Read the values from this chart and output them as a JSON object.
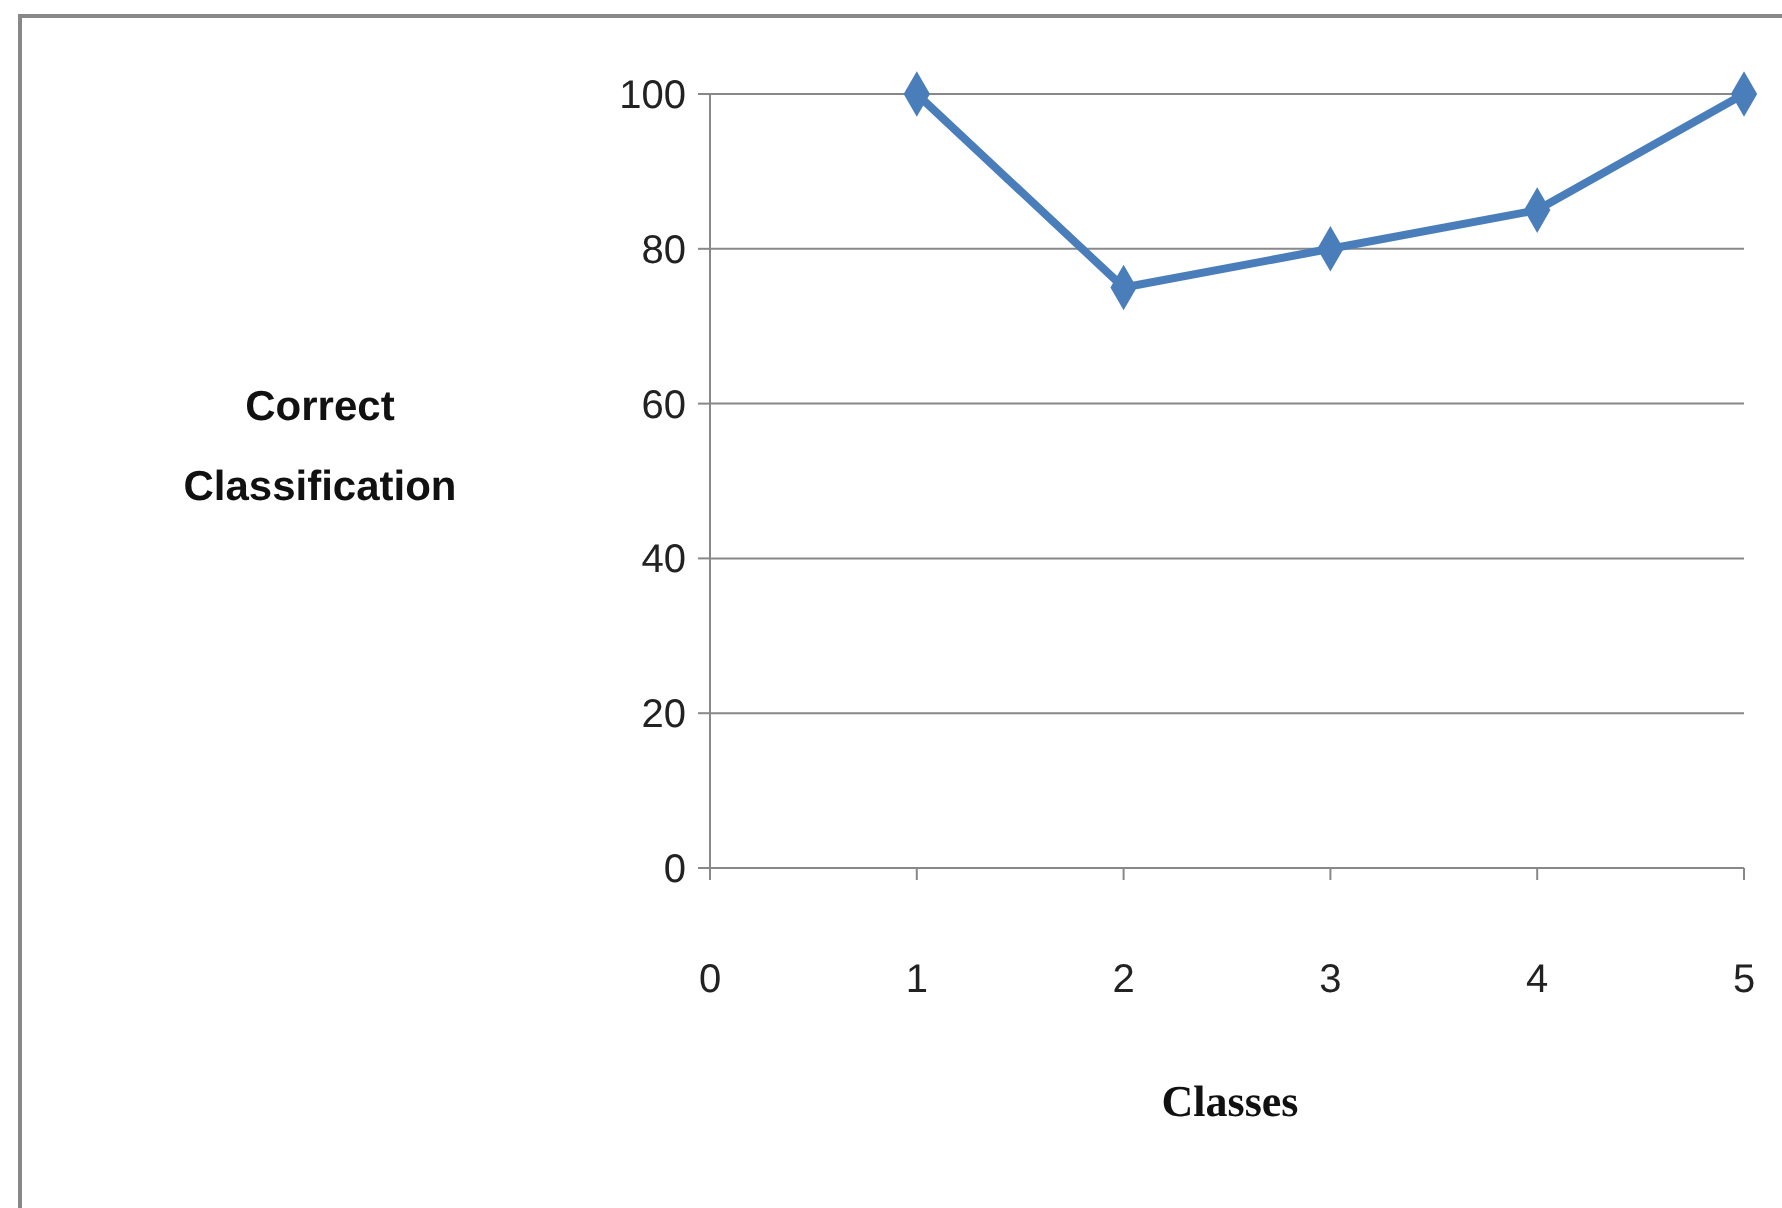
{
  "chart_data": {
    "type": "line",
    "xlabel": "Classes",
    "ylabel": "Correct Classification",
    "x": [
      1,
      2,
      3,
      4,
      5
    ],
    "series": [
      {
        "color": "#4a7ebb",
        "values": [
          100,
          75,
          80,
          85,
          100
        ]
      }
    ],
    "xlim": [
      0,
      5
    ],
    "xticks": [
      0,
      1,
      2,
      3,
      4,
      5
    ],
    "ylim": [
      0,
      100
    ],
    "yticks": [
      0,
      20,
      40,
      60,
      80,
      100
    ],
    "grid": "y",
    "marker": "diamond",
    "line_style": "solid"
  }
}
